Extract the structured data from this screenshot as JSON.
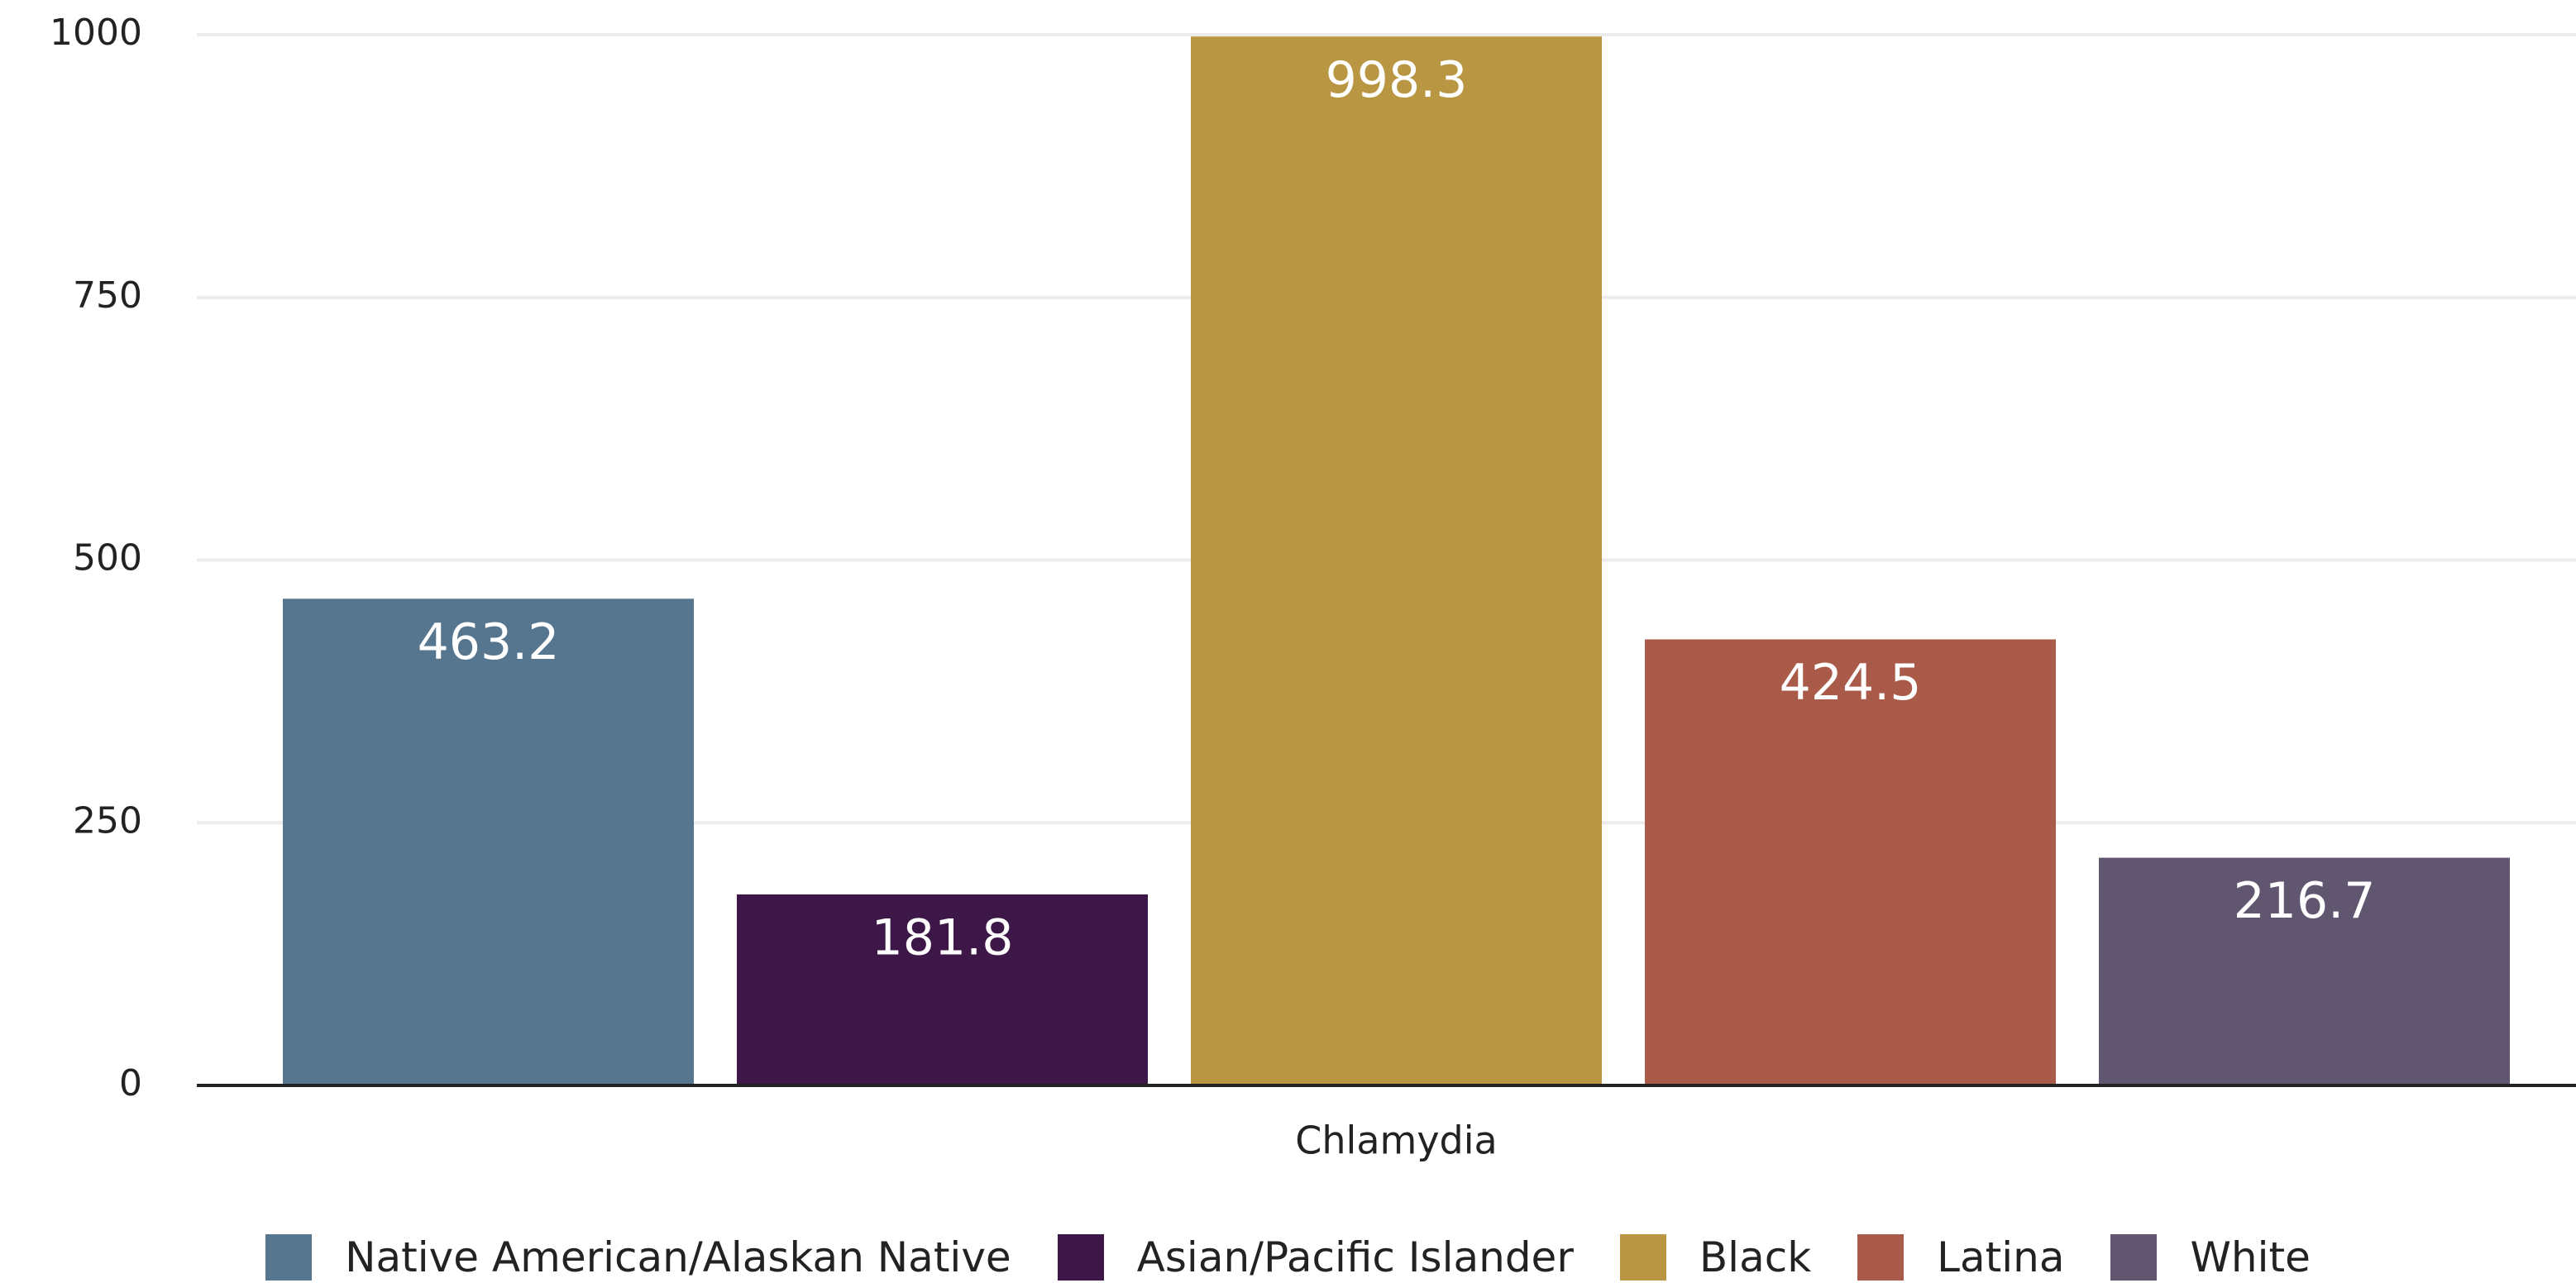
{
  "chart_data": {
    "type": "bar",
    "categories": [
      "Chlamydia"
    ],
    "series": [
      {
        "name": "Native American/Alaskan Native",
        "color": "#56768f",
        "values": [
          463.2
        ]
      },
      {
        "name": "Asian/Pacific Islander",
        "color": "#3c1747",
        "values": [
          181.8
        ]
      },
      {
        "name": "Black",
        "color": "#b99642",
        "values": [
          998.3
        ]
      },
      {
        "name": "Latina",
        "color": "#a95a48",
        "values": [
          424.5
        ]
      },
      {
        "name": "White",
        "color": "#615670",
        "values": [
          216.7
        ]
      }
    ],
    "ylim": [
      0,
      1000
    ],
    "yticks": [
      0,
      250,
      500,
      750,
      1000
    ],
    "grid": true,
    "legend": "bottom"
  }
}
